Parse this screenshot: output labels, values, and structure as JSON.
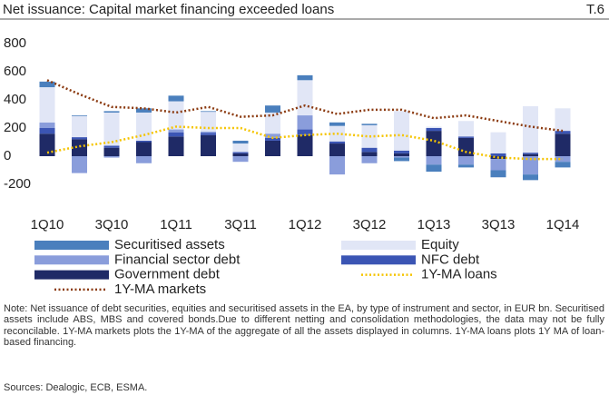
{
  "chart_data": {
    "type": "bar",
    "title": "Net issuance: Capital market financing exceeded loans",
    "code": "T.6",
    "categories": [
      "1Q10",
      null,
      "3Q10",
      null,
      "1Q11",
      null,
      "3Q11",
      null,
      "1Q12",
      null,
      "3Q12",
      null,
      "1Q13",
      null,
      "3Q13",
      null,
      "1Q14"
    ],
    "series": [
      {
        "name": "Government debt",
        "color": "#1f2a66",
        "values": [
          160,
          120,
          60,
          100,
          140,
          150,
          20,
          110,
          150,
          90,
          30,
          20,
          180,
          130,
          -20,
          15,
          160
        ]
      },
      {
        "name": "NFC debt",
        "color": "#3b55b4",
        "values": [
          40,
          15,
          15,
          10,
          30,
          15,
          10,
          20,
          40,
          15,
          30,
          20,
          20,
          10,
          20,
          10,
          20
        ]
      },
      {
        "name": "Financial sector debt",
        "color": "#8a9ddb",
        "values": [
          40,
          -120,
          -10,
          -50,
          20,
          10,
          -40,
          30,
          100,
          -130,
          -50,
          -10,
          -60,
          -60,
          -80,
          -130,
          -40
        ]
      },
      {
        "name": "Equity",
        "color": "#e1e6f6",
        "values": [
          250,
          150,
          235,
          200,
          200,
          140,
          60,
          150,
          250,
          110,
          160,
          280,
          10,
          110,
          150,
          330,
          160
        ]
      },
      {
        "name": "Securitised assets",
        "color": "#4a7fbd",
        "values": [
          40,
          5,
          10,
          30,
          40,
          5,
          20,
          50,
          35,
          25,
          10,
          -25,
          -50,
          -20,
          -50,
          -40,
          -40
        ]
      },
      {
        "name": "1Y-MA markets",
        "type": "line",
        "color": "#8b3a10",
        "values": [
          540,
          440,
          350,
          340,
          310,
          350,
          280,
          290,
          360,
          300,
          330,
          330,
          270,
          290,
          250,
          210,
          180
        ]
      },
      {
        "name": "1Y-MA loans",
        "type": "line",
        "color": "#f5c400",
        "values": [
          25,
          70,
          100,
          150,
          210,
          200,
          200,
          130,
          150,
          160,
          140,
          150,
          110,
          30,
          -10,
          -20,
          -20
        ]
      }
    ],
    "ylim": [
      -200,
      800
    ],
    "yticks": [
      -200,
      0,
      200,
      400,
      600,
      800
    ],
    "note": "Note: Net issuance of debt securities, equities and securitised assets in the EA, by type of instrument and sector, in EUR bn. Securitised assets include ABS, MBS and covered bonds.Due to different netting and consolidation methodologies, the data may not be fully reconcilable. 1Y-MA markets plots the 1Y-MA of the aggregate of all the assets displayed in columns. 1Y-MA loans plots 1Y MA of loan-based financing.",
    "sources": "Sources: Dealogic, ECB, ESMA."
  }
}
